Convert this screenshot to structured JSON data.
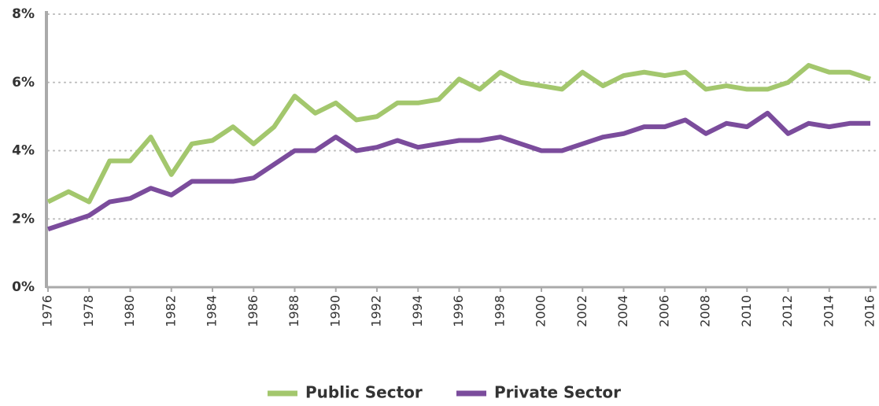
{
  "chart_data": {
    "type": "line",
    "x": [
      1976,
      1977,
      1978,
      1979,
      1980,
      1981,
      1982,
      1983,
      1984,
      1985,
      1986,
      1987,
      1988,
      1989,
      1990,
      1991,
      1992,
      1993,
      1994,
      1995,
      1996,
      1997,
      1998,
      1999,
      2000,
      2001,
      2002,
      2003,
      2004,
      2005,
      2006,
      2007,
      2008,
      2009,
      2010,
      2011,
      2012,
      2013,
      2014,
      2015,
      2016
    ],
    "series": [
      {
        "name": "Public Sector",
        "color": "#a3c76d",
        "values": [
          2.5,
          2.8,
          2.5,
          3.7,
          3.7,
          4.4,
          3.3,
          4.2,
          4.3,
          4.7,
          4.2,
          4.7,
          5.6,
          5.1,
          5.4,
          4.9,
          5.0,
          5.4,
          5.4,
          5.5,
          6.1,
          5.8,
          6.3,
          6.0,
          5.9,
          5.8,
          6.3,
          5.9,
          6.2,
          6.3,
          6.2,
          6.3,
          5.8,
          5.9,
          5.8,
          5.8,
          6.0,
          6.5,
          6.3,
          6.3,
          6.1
        ]
      },
      {
        "name": "Private Sector",
        "color": "#7b4c9c",
        "values": [
          1.7,
          1.9,
          2.1,
          2.5,
          2.6,
          2.9,
          2.7,
          3.1,
          3.1,
          3.1,
          3.2,
          3.6,
          4.0,
          4.0,
          4.4,
          4.0,
          4.1,
          4.3,
          4.1,
          4.2,
          4.3,
          4.3,
          4.4,
          4.2,
          4.0,
          4.0,
          4.2,
          4.4,
          4.5,
          4.7,
          4.7,
          4.9,
          4.5,
          4.8,
          4.7,
          5.1,
          4.5,
          4.8,
          4.7,
          4.8,
          4.8
        ]
      }
    ],
    "xlim": [
      1976,
      2016
    ],
    "xticks": [
      1976,
      1978,
      1980,
      1982,
      1984,
      1986,
      1988,
      1990,
      1992,
      1994,
      1996,
      1998,
      2000,
      2002,
      2004,
      2006,
      2008,
      2010,
      2012,
      2014,
      2016
    ],
    "ylim": [
      0,
      8
    ],
    "yticks": [
      {
        "value": 0,
        "label": "0%"
      },
      {
        "value": 2,
        "label": "2%"
      },
      {
        "value": 4,
        "label": "4%"
      },
      {
        "value": 6,
        "label": "6%"
      },
      {
        "value": 8,
        "label": "8%"
      }
    ],
    "grid": true,
    "legend": "bottom"
  }
}
